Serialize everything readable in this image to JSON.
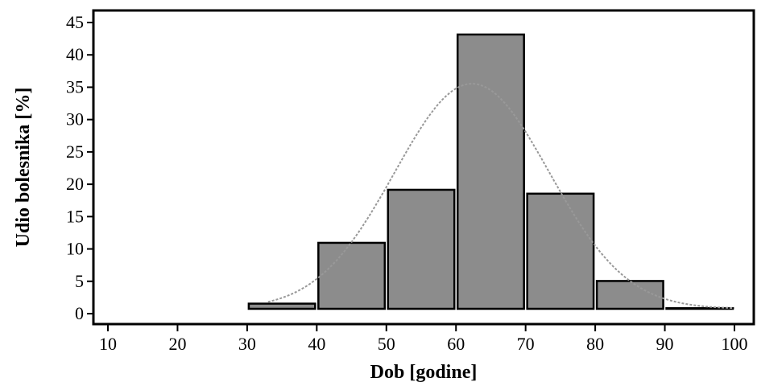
{
  "chart_data": {
    "type": "bar",
    "subtype": "histogram",
    "bins": [
      {
        "from": 10,
        "to": 20,
        "value": 0
      },
      {
        "from": 20,
        "to": 30,
        "value": 0
      },
      {
        "from": 30,
        "to": 40,
        "value": 0.8
      },
      {
        "from": 40,
        "to": 50,
        "value": 10.2
      },
      {
        "from": 50,
        "to": 60,
        "value": 18.4
      },
      {
        "from": 60,
        "to": 70,
        "value": 42.4
      },
      {
        "from": 70,
        "to": 80,
        "value": 17.8
      },
      {
        "from": 80,
        "to": 90,
        "value": 4.3
      },
      {
        "from": 90,
        "to": 100,
        "value": 0.1
      }
    ],
    "xlabel": "Dob [godine]",
    "ylabel": "Udio bolesnika [%]",
    "xlim": [
      10,
      100
    ],
    "ylim": [
      0,
      45
    ],
    "xticks": [
      "10",
      "20",
      "30",
      "40",
      "50",
      "60",
      "70",
      "80",
      "90",
      "100"
    ],
    "yticks": [
      "0",
      "5",
      "10",
      "15",
      "20",
      "25",
      "30",
      "35",
      "40",
      "45"
    ],
    "grid": false,
    "bar_color": "#8c8c8c",
    "bar_edge_color": "#000000",
    "curve": {
      "type": "normal-fit",
      "mean": 62.3,
      "sd": 11.1,
      "peak": 34.8,
      "color": "#999999"
    }
  }
}
